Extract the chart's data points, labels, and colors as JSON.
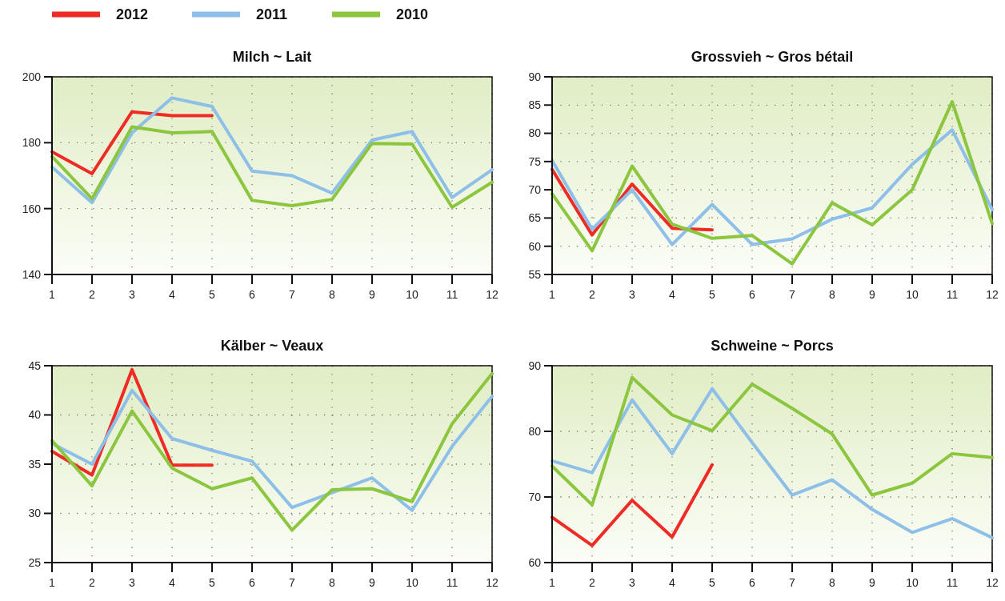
{
  "chart_data": [
    {
      "type": "line",
      "title": "Milch ~ Lait",
      "x": [
        1,
        2,
        3,
        4,
        5,
        6,
        7,
        8,
        9,
        10,
        11,
        12
      ],
      "xlim": [
        1,
        12
      ],
      "xticks": [
        1,
        2,
        3,
        4,
        5,
        6,
        7,
        8,
        9,
        10,
        11,
        12
      ],
      "ylim": [
        140,
        200
      ],
      "yticks": [
        140,
        160,
        180,
        200
      ],
      "grid": true,
      "legend": "top left",
      "series": [
        {
          "name": "2012",
          "color": "#ee2b24",
          "values": [
            177.2,
            170.6,
            189.4,
            188.2,
            188.2,
            null,
            null,
            null,
            null,
            null,
            null,
            null
          ]
        },
        {
          "name": "2011",
          "color": "#8dbfe8",
          "values": [
            172.6,
            161.8,
            183,
            193.6,
            191,
            171.4,
            170,
            164.7,
            180.8,
            183.4,
            163.4,
            171.8
          ]
        },
        {
          "name": "2010",
          "color": "#8cc63f",
          "values": [
            175.8,
            163,
            184.8,
            183,
            183.4,
            162.5,
            160.9,
            162.8,
            179.8,
            179.6,
            160.4,
            168
          ]
        }
      ]
    },
    {
      "type": "line",
      "title": "Grossvieh ~ Gros bétail",
      "x": [
        1,
        2,
        3,
        4,
        5,
        6,
        7,
        8,
        9,
        10,
        11,
        12
      ],
      "xlim": [
        1,
        12
      ],
      "xticks": [
        1,
        2,
        3,
        4,
        5,
        6,
        7,
        8,
        9,
        10,
        11,
        12
      ],
      "ylim": [
        55,
        90
      ],
      "yticks": [
        55,
        60,
        65,
        70,
        75,
        80,
        85,
        90
      ],
      "grid": true,
      "series": [
        {
          "color": "#ee2b24",
          "values": [
            73.6,
            62,
            71,
            63.2,
            62.9,
            null,
            null,
            null,
            null,
            null,
            null,
            null
          ]
        },
        {
          "color": "#8dbfe8",
          "values": [
            75.2,
            63,
            70,
            60.3,
            67.4,
            60.3,
            61.3,
            64.8,
            66.8,
            74.5,
            80.6,
            66.5
          ]
        },
        {
          "color": "#8cc63f",
          "values": [
            69.3,
            59.2,
            74.2,
            63.9,
            61.4,
            61.9,
            56.9,
            67.7,
            63.8,
            70,
            85.6,
            64
          ]
        }
      ]
    },
    {
      "type": "line",
      "title": "Kälber ~ Veaux",
      "x": [
        1,
        2,
        3,
        4,
        5,
        6,
        7,
        8,
        9,
        10,
        11,
        12
      ],
      "xlim": [
        1,
        12
      ],
      "xticks": [
        1,
        2,
        3,
        4,
        5,
        6,
        7,
        8,
        9,
        10,
        11,
        12
      ],
      "ylim": [
        25,
        45
      ],
      "yticks": [
        25,
        30,
        35,
        40,
        45
      ],
      "grid": true,
      "series": [
        {
          "color": "#ee2b24",
          "values": [
            36.3,
            33.9,
            44.6,
            34.9,
            34.9,
            null,
            null,
            null,
            null,
            null,
            null,
            null
          ]
        },
        {
          "color": "#8dbfe8",
          "values": [
            37.1,
            35,
            42.5,
            37.6,
            36.4,
            35.3,
            30.6,
            32.1,
            33.6,
            30.3,
            36.8,
            41.9
          ]
        },
        {
          "color": "#8cc63f",
          "values": [
            37.4,
            32.8,
            40.4,
            34.6,
            32.5,
            33.6,
            28.3,
            32.4,
            32.5,
            31.2,
            39.1,
            44.2
          ]
        }
      ]
    },
    {
      "type": "line",
      "title": "Schweine ~ Porcs",
      "x": [
        1,
        2,
        3,
        4,
        5,
        6,
        7,
        8,
        9,
        10,
        11,
        12
      ],
      "xlim": [
        1,
        12
      ],
      "xticks": [
        1,
        2,
        3,
        4,
        5,
        6,
        7,
        8,
        9,
        10,
        11,
        12
      ],
      "ylim": [
        60,
        90
      ],
      "yticks": [
        60,
        70,
        80,
        90
      ],
      "grid": true,
      "series": [
        {
          "color": "#ee2b24",
          "values": [
            66.9,
            62.6,
            69.5,
            63.9,
            74.9,
            null,
            null,
            null,
            null,
            null,
            null,
            null
          ]
        },
        {
          "color": "#8dbfe8",
          "values": [
            75.5,
            73.7,
            84.8,
            76.6,
            86.5,
            78.3,
            70.3,
            72.6,
            68.1,
            64.6,
            66.7,
            63.8
          ]
        },
        {
          "color": "#8cc63f",
          "values": [
            74.7,
            68.8,
            88.2,
            82.5,
            80.1,
            87.2,
            83.5,
            79.6,
            70.3,
            72.1,
            76.6,
            76
          ]
        }
      ]
    }
  ]
}
